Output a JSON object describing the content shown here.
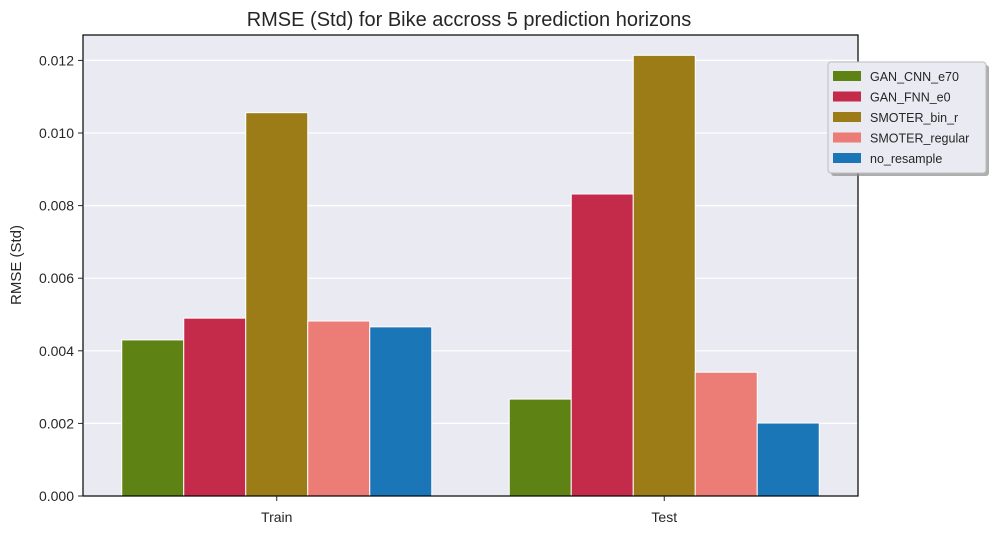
{
  "chart_data": {
    "type": "bar",
    "title": "RMSE (Std) for Bike accross 5 prediction horizons",
    "xlabel": "",
    "ylabel": "RMSE (Std)",
    "categories": [
      "Train",
      "Test"
    ],
    "ylim": [
      0,
      0.0127
    ],
    "yticks": [
      "0.000",
      "0.002",
      "0.004",
      "0.006",
      "0.008",
      "0.010",
      "0.012"
    ],
    "ytick_values": [
      0,
      0.002,
      0.004,
      0.006,
      0.008,
      0.01,
      0.012
    ],
    "grid": true,
    "legend_position": "right",
    "series": [
      {
        "name": "GAN_CNN_e70",
        "color": "#5f8214",
        "values": [
          0.0043,
          0.00267
        ]
      },
      {
        "name": "GAN_FNN_e0",
        "color": "#c42b4b",
        "values": [
          0.0049,
          0.00832
        ]
      },
      {
        "name": "SMOTER_bin_r",
        "color": "#9c7c16",
        "values": [
          0.01056,
          0.01214
        ]
      },
      {
        "name": "SMOTER_regular",
        "color": "#ec7d76",
        "values": [
          0.00482,
          0.00341
        ]
      },
      {
        "name": "no_resample",
        "color": "#1a76b6",
        "values": [
          0.00466,
          0.00201
        ]
      }
    ]
  }
}
